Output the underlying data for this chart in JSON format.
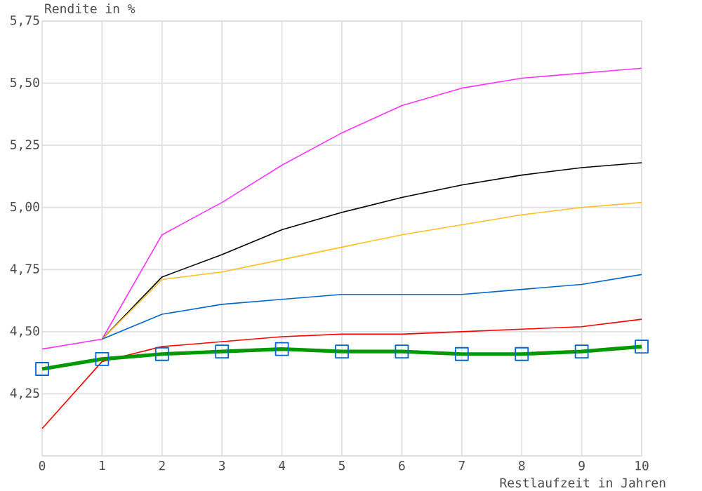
{
  "chart_data": {
    "type": "line",
    "ylabel": "Rendite in %",
    "xlabel": "Restlaufzeit in Jahren",
    "x": [
      0,
      1,
      2,
      3,
      4,
      5,
      6,
      7,
      8,
      9,
      10
    ],
    "xlim": [
      0,
      10
    ],
    "xticks": [
      0,
      1,
      2,
      3,
      4,
      5,
      6,
      7,
      8,
      9,
      10
    ],
    "ylim": [
      4.0,
      5.75
    ],
    "yticks": [
      {
        "value": 4.0,
        "label": null
      },
      {
        "value": 4.25,
        "label": "4,25"
      },
      {
        "value": 4.5,
        "label": "4,50"
      },
      {
        "value": 4.75,
        "label": "4,75"
      },
      {
        "value": 5.0,
        "label": "5,00"
      },
      {
        "value": 5.25,
        "label": "5,25"
      },
      {
        "value": 5.5,
        "label": "5,50"
      },
      {
        "value": 5.75,
        "label": "5,75"
      }
    ],
    "grid": true,
    "series": [
      {
        "color": "#ff33ff",
        "values": [
          4.43,
          4.47,
          4.89,
          5.02,
          5.17,
          5.3,
          5.41,
          5.48,
          5.52,
          5.54,
          5.56
        ]
      },
      {
        "color": "#000000",
        "values": [
          null,
          4.47,
          4.72,
          4.81,
          4.91,
          4.98,
          5.04,
          5.09,
          5.13,
          5.16,
          5.18
        ]
      },
      {
        "color": "#ffc020",
        "values": [
          null,
          4.47,
          4.71,
          4.74,
          4.79,
          4.84,
          4.89,
          4.93,
          4.97,
          5.0,
          5.02
        ]
      },
      {
        "color": "#0066cc",
        "values": [
          null,
          4.47,
          4.57,
          4.61,
          4.63,
          4.65,
          4.65,
          4.65,
          4.67,
          4.69,
          4.73
        ]
      },
      {
        "color": "#ff0000",
        "values": [
          4.11,
          4.38,
          4.44,
          4.46,
          4.48,
          4.49,
          4.49,
          4.5,
          4.51,
          4.52,
          4.55
        ]
      },
      {
        "color": "#009900",
        "marker": "square",
        "values": [
          4.35,
          4.39,
          4.41,
          4.42,
          4.43,
          4.42,
          4.42,
          4.41,
          4.41,
          4.42,
          4.44
        ]
      }
    ]
  }
}
